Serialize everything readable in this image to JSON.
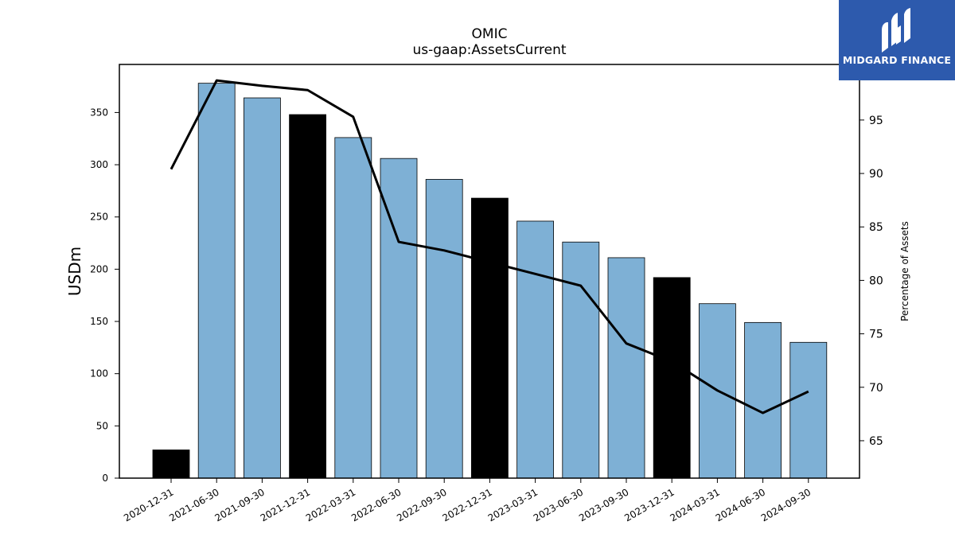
{
  "chart_data": {
    "type": "bar",
    "title": "OMIC",
    "subtitle": "us-gaap:AssetsCurrent",
    "ylabel": "USDm",
    "ylabel_right": "Percentage of Assets",
    "categories": [
      "2020-12-31",
      "2021-06-30",
      "2021-09-30",
      "2021-12-31",
      "2022-03-31",
      "2022-06-30",
      "2022-09-30",
      "2022-12-31",
      "2023-03-31",
      "2023-06-30",
      "2023-09-30",
      "2023-12-31",
      "2024-03-31",
      "2024-06-30",
      "2024-09-30"
    ],
    "values": [
      27,
      378,
      364,
      348,
      326,
      306,
      286,
      268,
      246,
      226,
      211,
      192,
      167,
      149,
      130
    ],
    "bar_colors": [
      "#000000",
      "#7eb0d5",
      "#7eb0d5",
      "#000000",
      "#7eb0d5",
      "#7eb0d5",
      "#7eb0d5",
      "#000000",
      "#7eb0d5",
      "#7eb0d5",
      "#7eb0d5",
      "#000000",
      "#7eb0d5",
      "#7eb0d5",
      "#7eb0d5"
    ],
    "line_series": {
      "values": [
        90.4,
        98.7,
        98.2,
        97.8,
        95.3,
        83.6,
        82.8,
        81.7,
        80.6,
        79.5,
        74.1,
        72.4,
        69.7,
        67.6,
        69.6
      ],
      "color": "#000000"
    },
    "ylim": [
      0,
      396
    ],
    "yticks": [
      0,
      50,
      100,
      150,
      200,
      250,
      300,
      350
    ],
    "ylim_right": [
      61.5,
      100.2
    ],
    "yticks_right": [
      65,
      70,
      75,
      80,
      85,
      90,
      95
    ]
  },
  "logo": {
    "text": "MIDGARD FINANCE",
    "color": "#2d5aad"
  }
}
